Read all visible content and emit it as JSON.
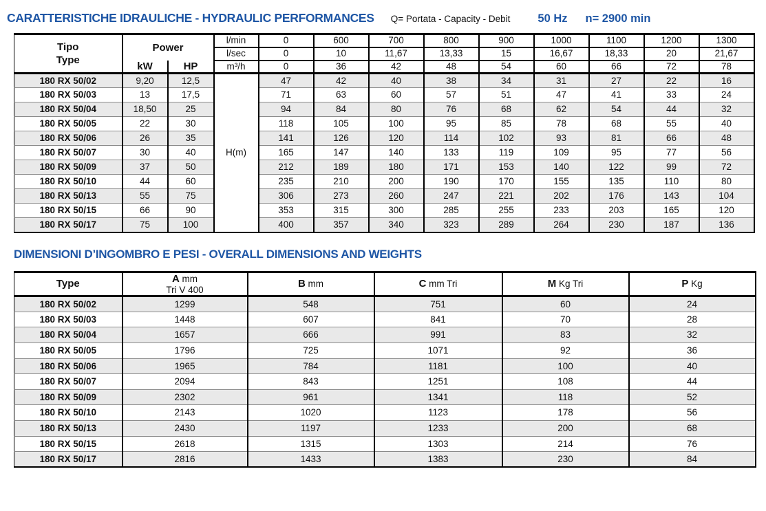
{
  "header": {
    "title": "CARATTERISTICHE IDRAULICHE - HYDRAULIC PERFORMANCES",
    "legend": "Q= Portata - Capacity - Debit",
    "frequency": "50 Hz",
    "speed": "n= 2900 min"
  },
  "colors": {
    "accent_blue": "#1e56a5",
    "row_alt": "#e9e9e9"
  },
  "hydraulic_table": {
    "type_header": [
      "Tipo",
      "Type"
    ],
    "power_label": "Power",
    "power_units": [
      "kW",
      "HP"
    ],
    "flow_rows": [
      {
        "unit": "l/min",
        "values": [
          "0",
          "600",
          "700",
          "800",
          "900",
          "1000",
          "1100",
          "1200",
          "1300"
        ]
      },
      {
        "unit": "l/sec",
        "values": [
          "0",
          "10",
          "11,67",
          "13,33",
          "15",
          "16,67",
          "18,33",
          "20",
          "21,67"
        ]
      },
      {
        "unit": "m³/h",
        "values": [
          "0",
          "36",
          "42",
          "48",
          "54",
          "60",
          "66",
          "72",
          "78"
        ]
      }
    ],
    "head_unit_label": "H(m)",
    "rows": [
      {
        "type": "180 RX 50/02",
        "kw": "9,20",
        "hp": "12,5",
        "head": [
          "47",
          "42",
          "40",
          "38",
          "34",
          "31",
          "27",
          "22",
          "16"
        ]
      },
      {
        "type": "180 RX 50/03",
        "kw": "13",
        "hp": "17,5",
        "head": [
          "71",
          "63",
          "60",
          "57",
          "51",
          "47",
          "41",
          "33",
          "24"
        ]
      },
      {
        "type": "180 RX 50/04",
        "kw": "18,50",
        "hp": "25",
        "head": [
          "94",
          "84",
          "80",
          "76",
          "68",
          "62",
          "54",
          "44",
          "32"
        ]
      },
      {
        "type": "180 RX 50/05",
        "kw": "22",
        "hp": "30",
        "head": [
          "118",
          "105",
          "100",
          "95",
          "85",
          "78",
          "68",
          "55",
          "40"
        ]
      },
      {
        "type": "180 RX 50/06",
        "kw": "26",
        "hp": "35",
        "head": [
          "141",
          "126",
          "120",
          "114",
          "102",
          "93",
          "81",
          "66",
          "48"
        ]
      },
      {
        "type": "180 RX 50/07",
        "kw": "30",
        "hp": "40",
        "head": [
          "165",
          "147",
          "140",
          "133",
          "119",
          "109",
          "95",
          "77",
          "56"
        ]
      },
      {
        "type": "180 RX 50/09",
        "kw": "37",
        "hp": "50",
        "head": [
          "212",
          "189",
          "180",
          "171",
          "153",
          "140",
          "122",
          "99",
          "72"
        ]
      },
      {
        "type": "180 RX 50/10",
        "kw": "44",
        "hp": "60",
        "head": [
          "235",
          "210",
          "200",
          "190",
          "170",
          "155",
          "135",
          "110",
          "80"
        ]
      },
      {
        "type": "180 RX 50/13",
        "kw": "55",
        "hp": "75",
        "head": [
          "306",
          "273",
          "260",
          "247",
          "221",
          "202",
          "176",
          "143",
          "104"
        ]
      },
      {
        "type": "180 RX 50/15",
        "kw": "66",
        "hp": "90",
        "head": [
          "353",
          "315",
          "300",
          "285",
          "255",
          "233",
          "203",
          "165",
          "120"
        ]
      },
      {
        "type": "180 RX 50/17",
        "kw": "75",
        "hp": "100",
        "head": [
          "400",
          "357",
          "340",
          "323",
          "289",
          "264",
          "230",
          "187",
          "136"
        ]
      }
    ]
  },
  "dimensions": {
    "title": "DIMENSIONI D’INGOMBRO E PESI - OVERALL DIMENSIONS AND WEIGHTS",
    "type_header": "Type",
    "col_headers": [
      {
        "letter": "A",
        "unit": "mm",
        "sub": "Tri V 400"
      },
      {
        "letter": "B",
        "unit": "mm",
        "sub": ""
      },
      {
        "letter": "C",
        "unit": "mm Tri",
        "sub": ""
      },
      {
        "letter": "M",
        "unit": "Kg Tri",
        "sub": ""
      },
      {
        "letter": "P",
        "unit": "Kg",
        "sub": ""
      }
    ],
    "rows": [
      {
        "type": "180 RX 50/02",
        "values": [
          "1299",
          "548",
          "751",
          "60",
          "24"
        ]
      },
      {
        "type": "180 RX 50/03",
        "values": [
          "1448",
          "607",
          "841",
          "70",
          "28"
        ]
      },
      {
        "type": "180 RX 50/04",
        "values": [
          "1657",
          "666",
          "991",
          "83",
          "32"
        ]
      },
      {
        "type": "180 RX 50/05",
        "values": [
          "1796",
          "725",
          "1071",
          "92",
          "36"
        ]
      },
      {
        "type": "180 RX 50/06",
        "values": [
          "1965",
          "784",
          "1181",
          "100",
          "40"
        ]
      },
      {
        "type": "180 RX 50/07",
        "values": [
          "2094",
          "843",
          "1251",
          "108",
          "44"
        ]
      },
      {
        "type": "180 RX 50/09",
        "values": [
          "2302",
          "961",
          "1341",
          "118",
          "52"
        ]
      },
      {
        "type": "180 RX 50/10",
        "values": [
          "2143",
          "1020",
          "1123",
          "178",
          "56"
        ]
      },
      {
        "type": "180 RX 50/13",
        "values": [
          "2430",
          "1197",
          "1233",
          "200",
          "68"
        ]
      },
      {
        "type": "180 RX 50/15",
        "values": [
          "2618",
          "1315",
          "1303",
          "214",
          "76"
        ]
      },
      {
        "type": "180 RX 50/17",
        "values": [
          "2816",
          "1433",
          "1383",
          "230",
          "84"
        ]
      }
    ]
  }
}
